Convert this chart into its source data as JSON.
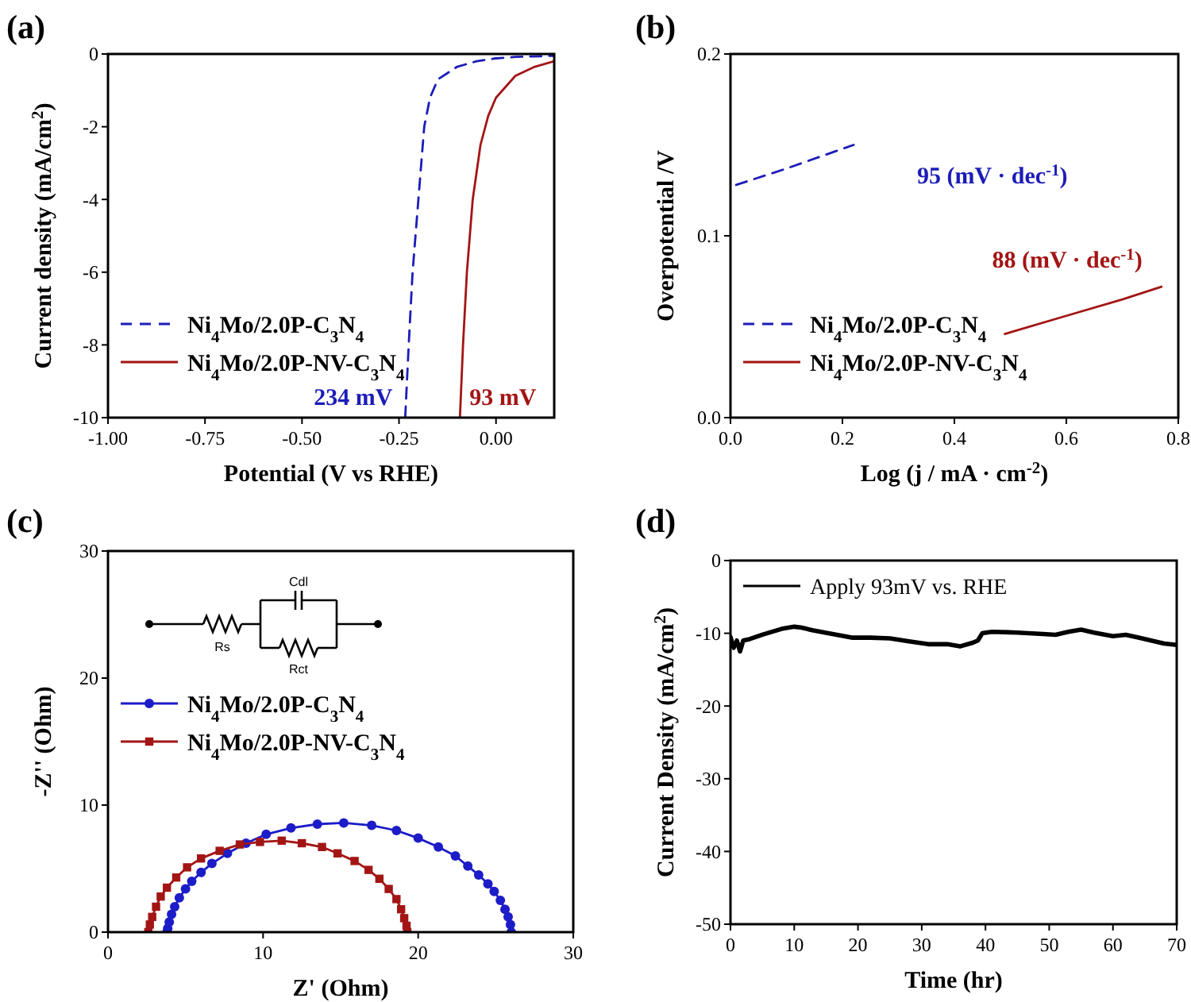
{
  "chart_data": [
    {
      "type": "line",
      "title": "(a)",
      "xlabel": "Potential (V vs RHE)",
      "ylabel": "Current density  (mA/cm$^{2}$)",
      "xlim": [
        -1,
        0.15
      ],
      "ylim": [
        -10,
        0
      ],
      "xticks": [
        {
          "value": -1,
          "label": "-1.00"
        },
        {
          "value": -0.75,
          "label": "-0.75"
        },
        {
          "value": -0.5,
          "label": "-0.50"
        },
        {
          "value": -0.25,
          "label": "-0.25"
        },
        {
          "value": 0,
          "label": "0.00"
        }
      ],
      "yticks": [
        0,
        -2,
        -4,
        -6,
        -8,
        -10
      ],
      "legend": "bottom left",
      "annotations": [
        "234 mV",
        "93 mV"
      ],
      "series": [
        {
          "name": "Ni$_{4}$Mo/2.0P-C$_{3}$N$_{4}$",
          "color": "#1c1cb8",
          "line_style": "dashed",
          "x": [
            -0.234,
            -0.225,
            -0.215,
            -0.2,
            -0.185,
            -0.17,
            -0.15,
            -0.1,
            -0.05,
            0,
            0.05,
            0.15
          ],
          "values": [
            -10,
            -8,
            -6,
            -4,
            -2,
            -1.2,
            -0.7,
            -0.35,
            -0.2,
            -0.12,
            -0.08,
            -0.05
          ]
        },
        {
          "name": "Ni$_{4}$Mo/2.0P-NV-C$_{3}$N$_{4}$",
          "color": "#a31515",
          "line_style": "solid",
          "x": [
            -0.093,
            -0.085,
            -0.075,
            -0.06,
            -0.04,
            -0.02,
            0,
            0.05,
            0.1,
            0.15
          ],
          "values": [
            -10,
            -8,
            -6,
            -4,
            -2.5,
            -1.7,
            -1.2,
            -0.6,
            -0.35,
            -0.2
          ]
        }
      ]
    },
    {
      "type": "line",
      "title": "(b)",
      "xlabel": "Log (j / mA · cm$^{-2}$)",
      "ylabel": "Overpotential /V",
      "xlim": [
        0,
        0.8
      ],
      "ylim": [
        0,
        0.2
      ],
      "xticks": [
        {
          "value": 0,
          "label": "0.0"
        },
        {
          "value": 0.2,
          "label": "0.2"
        },
        {
          "value": 0.4,
          "label": "0.4"
        },
        {
          "value": 0.6,
          "label": "0.6"
        },
        {
          "value": 0.8,
          "label": "0.8"
        }
      ],
      "yticks": [
        {
          "value": 0,
          "label": "0.0"
        },
        {
          "value": 0.1,
          "label": "0.1"
        },
        {
          "value": 0.2,
          "label": "0.2"
        }
      ],
      "legend": "bottom left",
      "annotations": [
        "95 (mV · dec$^{-1}$)",
        "88 (mV · dec$^{-1}$)"
      ],
      "series": [
        {
          "name": "Ni$_{4}$Mo/2.0P-C$_{3}$N$_{4}$",
          "color": "#1c1cb8",
          "line_style": "dashed",
          "x": [
            0.01,
            0.1,
            0.22
          ],
          "values": [
            0.128,
            0.137,
            0.15
          ]
        },
        {
          "name": "Ni$_{4}$Mo/2.0P-NV-C$_{3}$N$_{4}$",
          "color": "#a31515",
          "line_style": "solid",
          "x": [
            0.49,
            0.6,
            0.7,
            0.77
          ],
          "values": [
            0.046,
            0.056,
            0.065,
            0.072
          ]
        }
      ]
    },
    {
      "type": "line",
      "title": "(c)",
      "xlabel": "Z' (Ohm)",
      "ylabel": "-Z'' (Ohm)",
      "xlim": [
        0,
        30
      ],
      "ylim": [
        0,
        30
      ],
      "xticks": [
        0,
        10,
        20,
        30
      ],
      "yticks": [
        0,
        10,
        20,
        30
      ],
      "legend": "left",
      "annotations": [
        "Cdl",
        "Rs",
        "Rct"
      ],
      "series": [
        {
          "name": "Ni$_{4}$Mo/2.0P-C$_{3}$N$_{4}$",
          "color": "#1c1cc8",
          "marker": "circle",
          "line_style": "solid",
          "x": [
            3.8,
            3.85,
            3.95,
            4.1,
            4.3,
            4.6,
            5.0,
            5.4,
            6.0,
            6.7,
            7.7,
            8.9,
            10.2,
            11.8,
            13.5,
            15.2,
            17.0,
            18.6,
            20.0,
            21.3,
            22.4,
            23.2,
            23.9,
            24.5,
            24.9,
            25.3,
            25.6,
            25.8,
            25.95,
            26.0
          ],
          "values": [
            0,
            0.3,
            0.8,
            1.4,
            2.0,
            2.7,
            3.4,
            4.0,
            4.7,
            5.4,
            6.2,
            7.0,
            7.7,
            8.2,
            8.5,
            8.6,
            8.4,
            8.0,
            7.4,
            6.7,
            6.0,
            5.2,
            4.5,
            3.8,
            3.2,
            2.5,
            1.8,
            1.2,
            0.6,
            0
          ]
        },
        {
          "name": "Ni$_{4}$Mo/2.0P-NV-C$_{3}$N$_{4}$",
          "color": "#a31515",
          "marker": "square",
          "line_style": "solid",
          "x": [
            2.6,
            2.7,
            2.85,
            3.1,
            3.4,
            3.8,
            4.4,
            5.1,
            6.0,
            7.2,
            8.5,
            9.8,
            11.2,
            12.5,
            13.8,
            14.8,
            15.9,
            16.8,
            17.5,
            18.1,
            18.6,
            18.9,
            19.1,
            19.25,
            19.3
          ],
          "values": [
            0,
            0.6,
            1.2,
            2.0,
            2.8,
            3.5,
            4.3,
            5.1,
            5.8,
            6.4,
            6.9,
            7.1,
            7.2,
            7.0,
            6.7,
            6.2,
            5.6,
            4.9,
            4.2,
            3.4,
            2.6,
            1.8,
            1.1,
            0.5,
            0
          ]
        }
      ]
    },
    {
      "type": "line",
      "title": "(d)",
      "xlabel": "Time (hr)",
      "ylabel": "Current Density (mA/cm$^{2}$)",
      "xlim": [
        0,
        70
      ],
      "ylim": [
        -50,
        0
      ],
      "xticks": [
        0,
        10,
        20,
        30,
        40,
        50,
        60,
        70
      ],
      "yticks": [
        0,
        -10,
        -20,
        -30,
        -40,
        -50
      ],
      "legend": "top left",
      "series": [
        {
          "name": "Apply 93mV vs. RHE",
          "color": "#000000",
          "line_style": "solid",
          "x": [
            0,
            0.5,
            1,
            1.5,
            2,
            3,
            5,
            8,
            10,
            11,
            13,
            16,
            19,
            22,
            25,
            28,
            31,
            34,
            36,
            38,
            38.8,
            39.5,
            41,
            45,
            49,
            51,
            53,
            55,
            57,
            60,
            62,
            64,
            66,
            68,
            70
          ],
          "values": [
            -10.5,
            -12,
            -11,
            -12.5,
            -11,
            -10.8,
            -10.2,
            -9.4,
            -9.1,
            -9.2,
            -9.6,
            -10.1,
            -10.6,
            -10.6,
            -10.7,
            -11.1,
            -11.5,
            -11.5,
            -11.8,
            -11.3,
            -11,
            -10,
            -9.8,
            -9.9,
            -10.1,
            -10.2,
            -9.8,
            -9.5,
            -9.9,
            -10.4,
            -10.2,
            -10.6,
            -11,
            -11.4,
            -11.6
          ]
        }
      ]
    }
  ]
}
